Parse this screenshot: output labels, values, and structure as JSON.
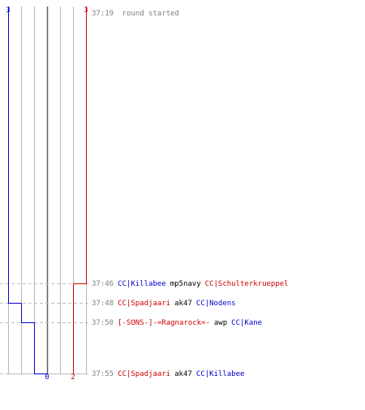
{
  "scores": {
    "top_blue": "3",
    "top_red": "3",
    "bottom_blue": "0",
    "bottom_red": "2"
  },
  "colors": {
    "blue": "#0000cc",
    "red": "#cc0000",
    "neutral_text": "#000000",
    "time_text": "#808080",
    "grid": "#b8b8b8",
    "center_line": "#606060",
    "dash": "#c0c0c0"
  },
  "start": {
    "time": "37:19",
    "text": "round started"
  },
  "events": [
    {
      "time": "37:46",
      "attacker": "CC|Killabee",
      "attacker_team": "blue",
      "weapon": "mp5navy",
      "victim": "CC|Schulterkrueppel",
      "victim_team": "red",
      "blue_remaining": 3,
      "red_remaining": 2
    },
    {
      "time": "37:48",
      "attacker": "CC|Spadjaari",
      "attacker_team": "red",
      "weapon": "ak47",
      "victim": "CC|Nodens",
      "victim_team": "blue",
      "blue_remaining": 2,
      "red_remaining": 2
    },
    {
      "time": "37:50",
      "attacker": "[-SONS-]-=Ragnarock=-",
      "attacker_team": "red",
      "weapon": "awp",
      "victim": "CC|Kane",
      "victim_team": "blue",
      "blue_remaining": 1,
      "red_remaining": 2
    },
    {
      "time": "37:55",
      "attacker": "CC|Spadjaari",
      "attacker_team": "red",
      "weapon": "ak47",
      "victim": "CC|Killabee",
      "victim_team": "blue",
      "blue_remaining": 0,
      "red_remaining": 2
    }
  ]
}
